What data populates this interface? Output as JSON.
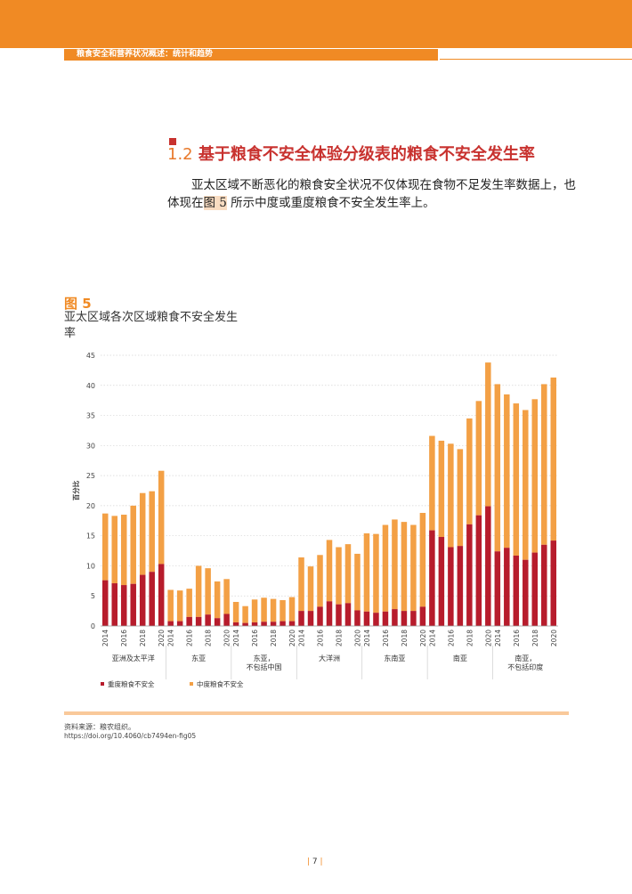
{
  "header": {
    "running_title": "粮食安全和营养状况概述：统计和趋势"
  },
  "section": {
    "number": "1.2",
    "title": "基于粮食不安全体验分级表的粮食不安全发生率",
    "body_before": "亚太区域不断恶化的粮食安全状况不仅体现在食物不足发生率数据上，也体现在",
    "body_ref": "图 5",
    "body_after": " 所示中度或重度粮食不安全发生率上。"
  },
  "figure": {
    "label": "图 5",
    "title": "亚太区域各次区域粮食不安全发生率"
  },
  "chart_data": {
    "type": "bar",
    "stacked": true,
    "ylabel": "百分比",
    "ylim": [
      0,
      45
    ],
    "yticks": [
      0,
      5,
      10,
      15,
      20,
      25,
      30,
      35,
      40,
      45
    ],
    "grid": true,
    "legend_position": "bottom-left",
    "years": [
      2014,
      2015,
      2016,
      2017,
      2018,
      2019,
      2020
    ],
    "year_tick_labels": [
      "2014",
      "2016",
      "2018",
      "2020"
    ],
    "groups": [
      {
        "name": "亚洲及太平洋",
        "severe": [
          7.6,
          7.1,
          6.8,
          7.0,
          8.5,
          9.0,
          10.3
        ],
        "total": [
          18.7,
          18.3,
          18.5,
          20.0,
          22.1,
          22.4,
          25.8
        ]
      },
      {
        "name": "东亚",
        "severe": [
          0.8,
          0.8,
          1.5,
          1.5,
          1.9,
          1.3,
          2.0
        ],
        "total": [
          6.0,
          5.9,
          6.2,
          10.0,
          9.6,
          7.4,
          7.8
        ]
      },
      {
        "name": "东亚，不包括中国",
        "severe": [
          0.6,
          0.5,
          0.6,
          0.7,
          0.7,
          0.8,
          0.8
        ],
        "total": [
          4.0,
          3.3,
          4.4,
          4.7,
          4.5,
          4.3,
          4.8
        ]
      },
      {
        "name": "大洋洲",
        "severe": [
          2.5,
          2.5,
          3.2,
          4.1,
          3.6,
          3.8,
          2.6
        ],
        "total": [
          11.4,
          9.9,
          11.8,
          14.3,
          13.1,
          13.6,
          12.0
        ]
      },
      {
        "name": "东南亚",
        "severe": [
          2.4,
          2.2,
          2.4,
          2.8,
          2.5,
          2.5,
          3.2
        ],
        "total": [
          15.4,
          15.3,
          16.8,
          17.7,
          17.3,
          16.8,
          18.8
        ]
      },
      {
        "name": "南亚",
        "severe": [
          15.9,
          14.8,
          13.1,
          13.3,
          16.9,
          18.4,
          19.9
        ],
        "total": [
          31.6,
          30.8,
          30.3,
          29.4,
          34.5,
          37.4,
          43.8
        ]
      },
      {
        "name": "南亚，不包括印度",
        "severe": [
          12.4,
          13.0,
          11.7,
          11.0,
          12.2,
          13.5,
          14.2
        ],
        "total": [
          40.2,
          38.5,
          37.0,
          35.9,
          37.7,
          40.2,
          41.3
        ]
      }
    ],
    "series": [
      {
        "name": "重度粮食不安全",
        "color": "#b71c2c"
      },
      {
        "name": "中度粮食不安全",
        "color": "#f3a045"
      }
    ]
  },
  "source": {
    "line1": "资料来源：粮农组织。",
    "line2": "https://doi.org/10.4060/cb7494en-fig05"
  },
  "page": {
    "number": "7"
  }
}
